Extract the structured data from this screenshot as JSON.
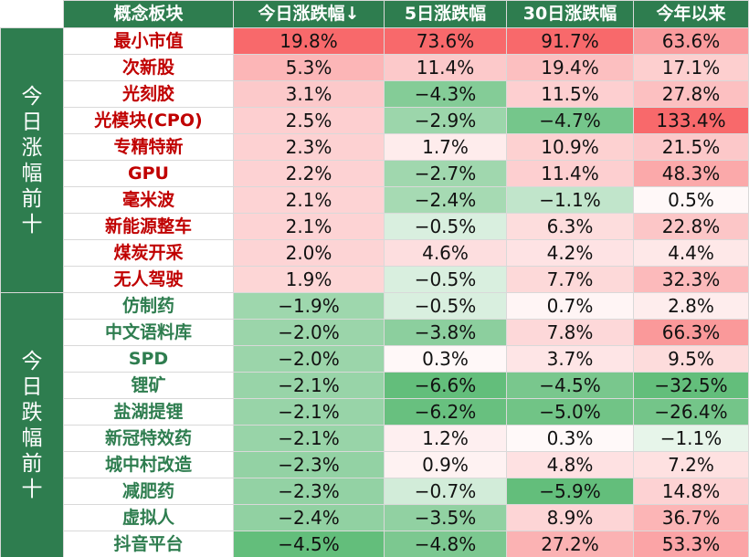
{
  "table": {
    "headers": [
      "概念板块",
      "今日涨跌幅↓",
      "5日涨跌幅",
      "30日涨跌幅",
      "今年以来"
    ],
    "groups": [
      {
        "label": "今日涨幅前十",
        "direction": "up",
        "rows": [
          {
            "name": "最小市值",
            "values": [
              "19.8%",
              "73.6%",
              "91.7%",
              "63.6%"
            ]
          },
          {
            "name": "次新股",
            "values": [
              "5.3%",
              "11.4%",
              "19.4%",
              "17.1%"
            ]
          },
          {
            "name": "光刻胶",
            "values": [
              "3.1%",
              "−4.3%",
              "11.5%",
              "27.8%"
            ]
          },
          {
            "name": "光模块(CPO)",
            "values": [
              "2.5%",
              "−2.9%",
              "−4.7%",
              "133.4%"
            ]
          },
          {
            "name": "专精特新",
            "values": [
              "2.3%",
              "1.7%",
              "10.9%",
              "21.5%"
            ]
          },
          {
            "name": "GPU",
            "values": [
              "2.2%",
              "−2.7%",
              "11.4%",
              "48.3%"
            ]
          },
          {
            "name": "毫米波",
            "values": [
              "2.1%",
              "−2.4%",
              "−1.1%",
              "0.5%"
            ]
          },
          {
            "name": "新能源整车",
            "values": [
              "2.1%",
              "−0.5%",
              "6.3%",
              "22.8%"
            ]
          },
          {
            "name": "煤炭开采",
            "values": [
              "2.0%",
              "4.6%",
              "4.2%",
              "4.4%"
            ]
          },
          {
            "name": "无人驾驶",
            "values": [
              "1.9%",
              "−0.5%",
              "7.7%",
              "32.3%"
            ]
          }
        ]
      },
      {
        "label": "今日跌幅前十",
        "direction": "down",
        "rows": [
          {
            "name": "仿制药",
            "values": [
              "−1.9%",
              "−0.5%",
              "0.7%",
              "2.8%"
            ]
          },
          {
            "name": "中文语料库",
            "values": [
              "−2.0%",
              "−3.8%",
              "7.8%",
              "66.3%"
            ]
          },
          {
            "name": "SPD",
            "values": [
              "−2.0%",
              "0.3%",
              "3.7%",
              "9.5%"
            ]
          },
          {
            "name": "锂矿",
            "values": [
              "−2.1%",
              "−6.6%",
              "−4.5%",
              "−32.5%"
            ]
          },
          {
            "name": "盐湖提锂",
            "values": [
              "−2.1%",
              "−6.2%",
              "−5.0%",
              "−26.4%"
            ]
          },
          {
            "name": "新冠特效药",
            "values": [
              "−2.1%",
              "1.2%",
              "0.3%",
              "−1.1%"
            ]
          },
          {
            "name": "城中村改造",
            "values": [
              "−2.3%",
              "0.9%",
              "4.8%",
              "7.2%"
            ]
          },
          {
            "name": "减肥药",
            "values": [
              "−2.3%",
              "−0.7%",
              "−5.9%",
              "14.8%"
            ]
          },
          {
            "name": "虚拟人",
            "values": [
              "−2.4%",
              "−3.5%",
              "8.9%",
              "36.7%"
            ]
          },
          {
            "name": "抖音平台",
            "values": [
              "−4.5%",
              "−4.8%",
              "27.2%",
              "53.3%"
            ]
          }
        ]
      }
    ]
  },
  "chart_data": {
    "type": "table",
    "columns": [
      "概念板块",
      "今日涨跌幅",
      "5日涨跌幅",
      "30日涨跌幅",
      "今年以来"
    ],
    "sort": "今日涨跌幅 descending",
    "color_scale": {
      "positive": "#f8696b",
      "neutral": "#ffffff",
      "negative": "#63be7b"
    },
    "groups": [
      {
        "label": "今日涨幅前十",
        "rows": [
          [
            "最小市值",
            19.8,
            73.6,
            91.7,
            63.6
          ],
          [
            "次新股",
            5.3,
            11.4,
            19.4,
            17.1
          ],
          [
            "光刻胶",
            3.1,
            -4.3,
            11.5,
            27.8
          ],
          [
            "光模块(CPO)",
            2.5,
            -2.9,
            -4.7,
            133.4
          ],
          [
            "专精特新",
            2.3,
            1.7,
            10.9,
            21.5
          ],
          [
            "GPU",
            2.2,
            -2.7,
            11.4,
            48.3
          ],
          [
            "毫米波",
            2.1,
            -2.4,
            -1.1,
            0.5
          ],
          [
            "新能源整车",
            2.1,
            -0.5,
            6.3,
            22.8
          ],
          [
            "煤炭开采",
            2.0,
            4.6,
            4.2,
            4.4
          ],
          [
            "无人驾驶",
            1.9,
            -0.5,
            7.7,
            32.3
          ]
        ]
      },
      {
        "label": "今日跌幅前十",
        "rows": [
          [
            "仿制药",
            -1.9,
            -0.5,
            0.7,
            2.8
          ],
          [
            "中文语料库",
            -2.0,
            -3.8,
            7.8,
            66.3
          ],
          [
            "SPD",
            -2.0,
            0.3,
            3.7,
            9.5
          ],
          [
            "锂矿",
            -2.1,
            -6.6,
            -4.5,
            -32.5
          ],
          [
            "盐湖提锂",
            -2.1,
            -6.2,
            -5.0,
            -26.4
          ],
          [
            "新冠特效药",
            -2.1,
            1.2,
            0.3,
            -1.1
          ],
          [
            "城中村改造",
            -2.3,
            0.9,
            4.8,
            7.2
          ],
          [
            "减肥药",
            -2.3,
            -0.7,
            -5.9,
            14.8
          ],
          [
            "虚拟人",
            -2.4,
            -3.5,
            8.9,
            36.7
          ],
          [
            "抖音平台",
            -4.5,
            -4.8,
            27.2,
            53.3
          ]
        ]
      }
    ]
  }
}
